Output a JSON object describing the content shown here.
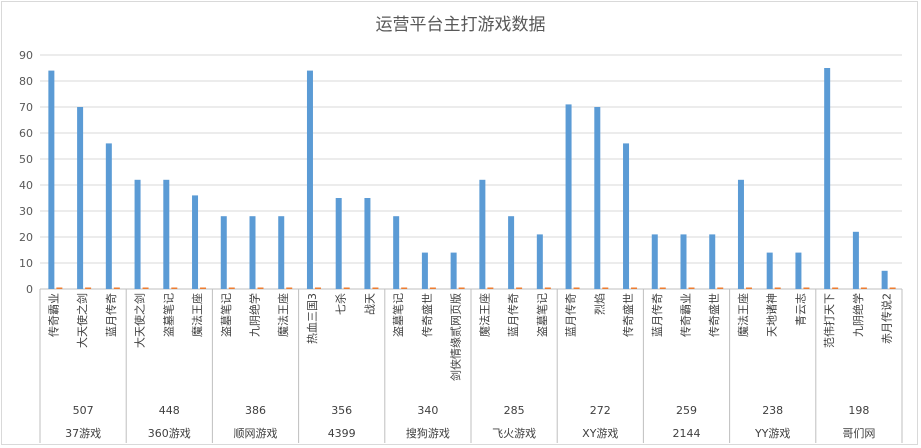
{
  "chart_data": {
    "type": "bar",
    "title": "运营平台主打游戏数据",
    "ylim": [
      0,
      90
    ],
    "yticks": [
      0,
      10,
      20,
      30,
      40,
      50,
      60,
      70,
      80,
      90
    ],
    "grid": true,
    "legend": "none",
    "colors": {
      "series1": "#5b9bd5",
      "series2": "#ed7d31",
      "grid": "#d9d9d9",
      "axis": "#bfbfbf"
    },
    "groups": [
      {
        "platform": "37游戏",
        "total": "507",
        "games": [
          "传奇霸业",
          "大天使之剑",
          "蓝月传奇"
        ],
        "values": [
          84,
          70,
          56
        ]
      },
      {
        "platform": "360游戏",
        "total": "448",
        "games": [
          "大天使之剑",
          "盗墓笔记",
          "魔法王座"
        ],
        "values": [
          42,
          42,
          36
        ]
      },
      {
        "platform": "顺网游戏",
        "total": "386",
        "games": [
          "盗墓笔记",
          "九阴绝学",
          "魔法王座"
        ],
        "values": [
          28,
          28,
          28
        ]
      },
      {
        "platform": "4399",
        "total": "356",
        "games": [
          "热血三国3",
          "七杀",
          "战天"
        ],
        "values": [
          84,
          35,
          35
        ]
      },
      {
        "platform": "搜狗游戏",
        "total": "340",
        "games": [
          "盗墓笔记",
          "传奇盛世",
          "剑侠情缘贰网页版"
        ],
        "values": [
          28,
          14,
          14
        ]
      },
      {
        "platform": "飞火游戏",
        "total": "285",
        "games": [
          "魔法王座",
          "蓝月传奇",
          "盗墓笔记"
        ],
        "values": [
          42,
          28,
          21
        ]
      },
      {
        "platform": "XY游戏",
        "total": "272",
        "games": [
          "蓝月传奇",
          "烈焰",
          "传奇盛世"
        ],
        "values": [
          71,
          70,
          56
        ]
      },
      {
        "platform": "2144",
        "total": "259",
        "games": [
          "蓝月传奇",
          "传奇霸业",
          "传奇盛世"
        ],
        "values": [
          21,
          21,
          21
        ]
      },
      {
        "platform": "YY游戏",
        "total": "238",
        "games": [
          "魔法王座",
          "天地诸神",
          "青云志"
        ],
        "values": [
          42,
          14,
          14
        ]
      },
      {
        "platform": "哥们网",
        "total": "198",
        "games": [
          "范伟打天下",
          "九阴绝学",
          "赤月传说2"
        ],
        "values": [
          85,
          22,
          7
        ]
      }
    ]
  }
}
